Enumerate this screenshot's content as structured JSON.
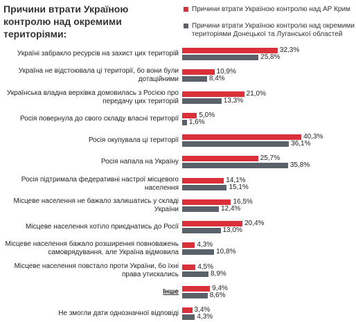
{
  "chart_data": {
    "type": "bar",
    "orientation": "horizontal",
    "title": "Причини втрати Україною контролю над окремими територіями:",
    "categories": [
      "Україні забракло ресурсів на захист цих територій",
      "Україна не відстоювала ці території, бо вони були дотаційними",
      "Українська владна верхівка домовилась з Росією про передачу цих територій",
      "Росія повернула до свого складу власні території",
      "Росія окупувала ці території",
      "Росія напала на Україну",
      "Росія підтримала федеративні настрої місцевого населення",
      "Місцеве населення не бажало залишатись у складі України",
      "Місцеве населення хотіло приєднатись до Росії",
      "Місцеве населення бажало розширення повноважень самоврядування, але Україна відмовила",
      "Місцеве населення повстало проти України, бо їхні права утискались",
      "Інше",
      "Не змогли дати однозначної відповіді"
    ],
    "series": [
      {
        "name": "Причини втрати Україною контролю над АР Крим",
        "color": "#d9303a",
        "values": [
          32.3,
          10.9,
          21.0,
          5.0,
          40.3,
          25.7,
          14.1,
          16.5,
          20.4,
          4.3,
          4.5,
          9.4,
          3.4
        ],
        "value_labels": [
          "32,3%",
          "10,9%",
          "21,0%",
          "5,0%",
          "40,3%",
          "25,7%",
          "14,1%",
          "16,5%",
          "20,4%",
          "4,3%",
          "4,5%",
          "9,4%",
          "3,4%"
        ]
      },
      {
        "name": "Причини втрати Україною контролю над окремими територіями Донецької та Луганської областей",
        "color": "#5b6169",
        "values": [
          25.8,
          8.4,
          13.3,
          1.6,
          36.1,
          35.8,
          15.1,
          12.4,
          13.0,
          10.8,
          8.9,
          8.6,
          4.3
        ],
        "value_labels": [
          "25,8%",
          "8,4%",
          "13,3%",
          "1,6%",
          "36,1%",
          "35,8%",
          "15,1%",
          "12,4%",
          "13,0%",
          "10,8%",
          "8,9%",
          "8,6%",
          "4,3%"
        ]
      }
    ]
  }
}
